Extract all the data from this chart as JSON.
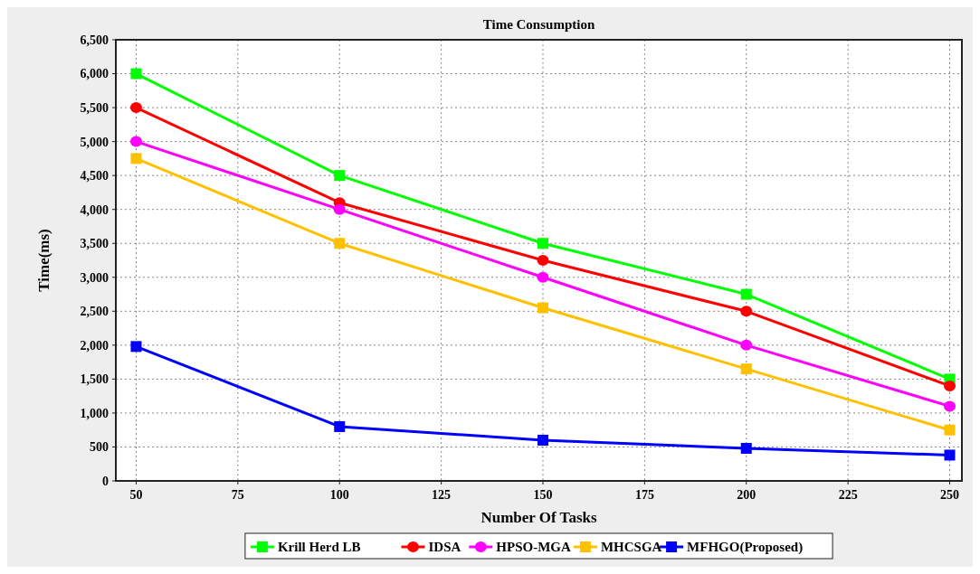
{
  "chart_data": {
    "type": "line",
    "title": "Time Consumption",
    "xlabel": "Number Of Tasks",
    "ylabel": "Time(ms)",
    "x": [
      50,
      100,
      150,
      200,
      250
    ],
    "xlim": [
      45,
      253
    ],
    "xticks": [
      50,
      75,
      100,
      125,
      150,
      175,
      200,
      225,
      250
    ],
    "ylim": [
      0,
      6500
    ],
    "yticks": [
      {
        "value": 0,
        "label": "0"
      },
      {
        "value": 500,
        "label": "500"
      },
      {
        "value": 1000,
        "label": "1,000"
      },
      {
        "value": 1500,
        "label": "1,500"
      },
      {
        "value": 2000,
        "label": "2,000"
      },
      {
        "value": 2500,
        "label": "2,500"
      },
      {
        "value": 3000,
        "label": "3,000"
      },
      {
        "value": 3500,
        "label": "3,500"
      },
      {
        "value": 4000,
        "label": "4,000"
      },
      {
        "value": 4500,
        "label": "4,500"
      },
      {
        "value": 5000,
        "label": "5,000"
      },
      {
        "value": 5500,
        "label": "5,500"
      },
      {
        "value": 6000,
        "label": "6,000"
      },
      {
        "value": 6500,
        "label": "6,500"
      }
    ],
    "grid": true,
    "legend": "bottom",
    "line_style": "solid",
    "series": [
      {
        "name": "Krill Herd LB",
        "color": "#00ff00",
        "marker": "square",
        "values": [
          6000,
          4500,
          3500,
          2750,
          1500
        ]
      },
      {
        "name": "IDSA",
        "color": "#ff0000",
        "marker": "circle",
        "values": [
          5500,
          4100,
          3250,
          2500,
          1400
        ]
      },
      {
        "name": "HPSO-MGA",
        "color": "#ff00ff",
        "marker": "circle",
        "values": [
          5000,
          4000,
          3000,
          2000,
          1100
        ]
      },
      {
        "name": "MHCSGA",
        "color": "#ffc000",
        "marker": "square",
        "values": [
          4750,
          3500,
          2550,
          1650,
          750
        ]
      },
      {
        "name": "MFHGO(Proposed)",
        "color": "#0000ff",
        "marker": "square",
        "values": [
          1980,
          800,
          600,
          480,
          380
        ]
      }
    ]
  }
}
